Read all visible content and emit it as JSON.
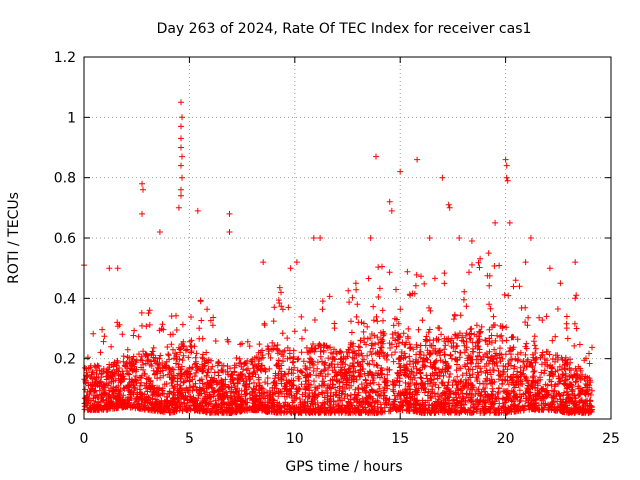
{
  "chart_data": {
    "type": "scatter",
    "title": "Day 263 of 2024, Rate Of TEC Index for receiver cas1",
    "xlabel": "GPS time / hours",
    "ylabel": "ROTI / TECUs",
    "xlim": [
      0,
      25
    ],
    "ylim": [
      0,
      1.2
    ],
    "xticks": [
      0,
      5,
      10,
      15,
      20,
      25
    ],
    "xtick_labels": [
      "0",
      "5",
      "10",
      "15",
      "20",
      "25"
    ],
    "yticks": [
      0,
      0.2,
      0.4,
      0.6,
      0.8,
      1.0,
      1.2
    ],
    "ytick_labels": [
      "0",
      "0.2",
      "0.4",
      "0.6",
      "0.8",
      "1",
      "1.2"
    ],
    "grid": true,
    "marker": "+",
    "series": [
      {
        "name": "cas1",
        "color": "#ff0000",
        "notable_points": [
          [
            0.0,
            0.51
          ],
          [
            2.75,
            0.78
          ],
          [
            2.8,
            0.76
          ],
          [
            2.75,
            0.68
          ],
          [
            4.6,
            1.05
          ],
          [
            4.65,
            1.0
          ],
          [
            4.6,
            0.97
          ],
          [
            4.6,
            0.93
          ],
          [
            4.6,
            0.9
          ],
          [
            4.65,
            0.87
          ],
          [
            4.6,
            0.84
          ],
          [
            4.65,
            0.8
          ],
          [
            4.6,
            0.76
          ],
          [
            4.6,
            0.74
          ],
          [
            4.5,
            0.7
          ],
          [
            5.4,
            0.69
          ],
          [
            6.9,
            0.68
          ],
          [
            6.9,
            0.62
          ],
          [
            3.6,
            0.62
          ],
          [
            13.85,
            0.87
          ],
          [
            15.0,
            0.82
          ],
          [
            15.8,
            0.86
          ],
          [
            17.0,
            0.8
          ],
          [
            14.5,
            0.72
          ],
          [
            14.6,
            0.69
          ],
          [
            17.3,
            0.71
          ],
          [
            17.35,
            0.7
          ],
          [
            20.0,
            0.86
          ],
          [
            20.05,
            0.84
          ],
          [
            20.05,
            0.8
          ],
          [
            20.1,
            0.79
          ],
          [
            20.2,
            0.65
          ],
          [
            19.5,
            0.65
          ],
          [
            20.95,
            0.52
          ],
          [
            23.3,
            0.52
          ],
          [
            23.3,
            0.4
          ],
          [
            23.35,
            0.41
          ],
          [
            10.9,
            0.6
          ],
          [
            11.2,
            0.6
          ],
          [
            13.6,
            0.6
          ],
          [
            16.4,
            0.6
          ],
          [
            17.8,
            0.6
          ],
          [
            21.2,
            0.6
          ],
          [
            22.1,
            0.5
          ],
          [
            22.6,
            0.45
          ],
          [
            1.6,
            0.5
          ],
          [
            1.2,
            0.5
          ],
          [
            8.5,
            0.52
          ],
          [
            9.8,
            0.5
          ],
          [
            10.1,
            0.52
          ],
          [
            12.9,
            0.45
          ],
          [
            18.4,
            0.59
          ],
          [
            19.2,
            0.55
          ]
        ],
        "bulk_envelope": {
          "hours": [
            0,
            1,
            2,
            3,
            4,
            5,
            6,
            7,
            8,
            9,
            10,
            11,
            12,
            13,
            14,
            15,
            16,
            17,
            18,
            19,
            20,
            21,
            22,
            23,
            24
          ],
          "low_roti": [
            0.03,
            0.03,
            0.04,
            0.03,
            0.02,
            0.03,
            0.02,
            0.02,
            0.03,
            0.02,
            0.02,
            0.02,
            0.02,
            0.02,
            0.02,
            0.03,
            0.02,
            0.02,
            0.02,
            0.02,
            0.02,
            0.03,
            0.03,
            0.02,
            0.02
          ],
          "high_roti": [
            0.3,
            0.3,
            0.34,
            0.38,
            0.4,
            0.45,
            0.35,
            0.3,
            0.35,
            0.45,
            0.4,
            0.45,
            0.4,
            0.45,
            0.52,
            0.5,
            0.48,
            0.5,
            0.52,
            0.55,
            0.55,
            0.42,
            0.38,
            0.35,
            0.25
          ],
          "samples_per_hour": 170,
          "seed": 263
        }
      }
    ]
  }
}
